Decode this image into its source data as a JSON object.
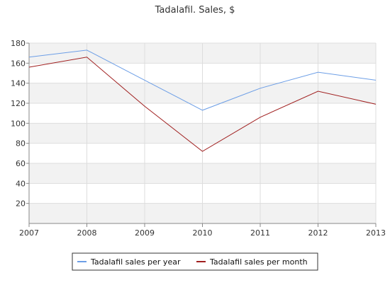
{
  "chart_data": {
    "type": "line",
    "title": "Tadalafil. Sales, $",
    "xlabel": "",
    "ylabel": "",
    "x": [
      "2007",
      "2008",
      "2009",
      "2010",
      "2011",
      "2012",
      "2013"
    ],
    "xlim": [
      2007,
      2013
    ],
    "ylim": [
      0,
      180
    ],
    "yticks": [
      20,
      40,
      60,
      80,
      100,
      120,
      140,
      160,
      180
    ],
    "grid": true,
    "banded_background": true,
    "legend_position": "bottom-center",
    "series": [
      {
        "name": "Tadalafil sales per year",
        "color": "#6c9ee6",
        "values": [
          166,
          173,
          143,
          113,
          135,
          151,
          143
        ]
      },
      {
        "name": "Tadalafil sales per month",
        "color": "#a01f1f",
        "values": [
          156,
          166,
          117,
          72,
          106,
          132,
          119
        ]
      }
    ]
  }
}
